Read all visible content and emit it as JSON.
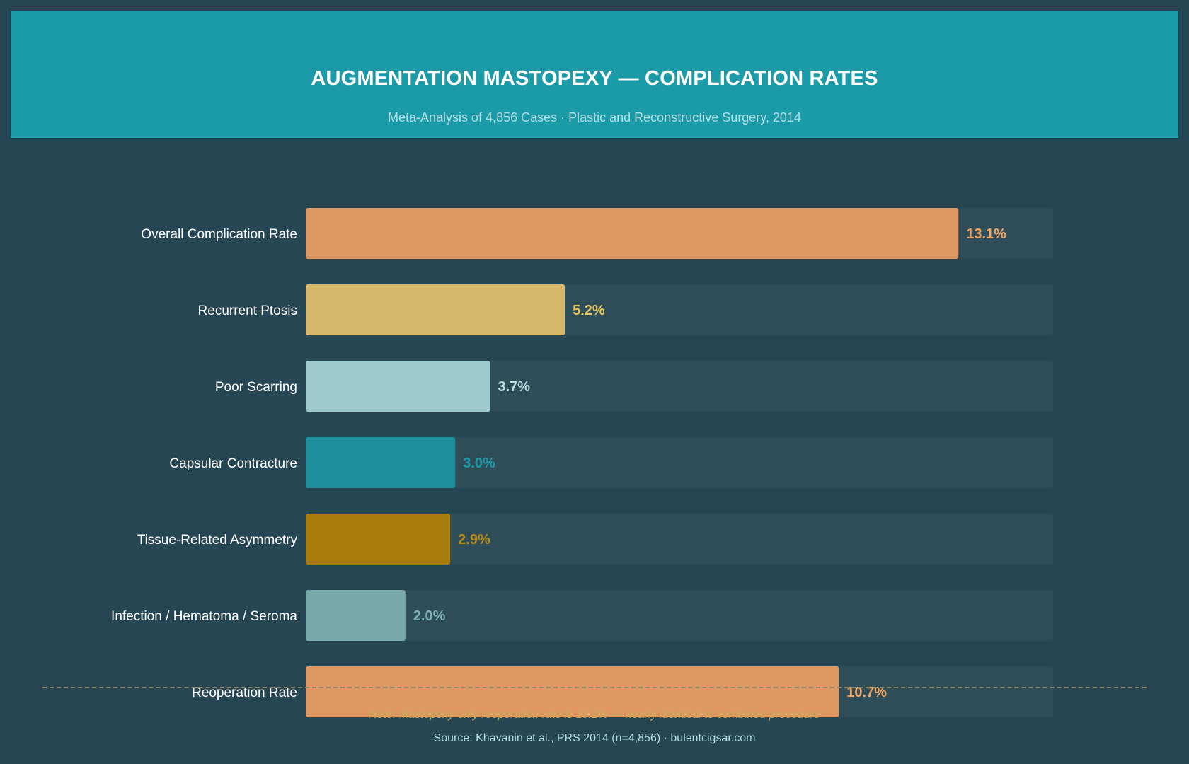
{
  "header": {
    "title": "AUGMENTATION MASTOPEXY — COMPLICATION RATES",
    "subtitle": "Meta-Analysis of 4,856 Cases · Plastic and Reconstructive Surgery, 2014"
  },
  "chart_data": {
    "type": "bar",
    "orientation": "horizontal",
    "categories": [
      "Overall Complication Rate",
      "Recurrent Ptosis",
      "Poor Scarring",
      "Capsular Contracture",
      "Tissue-Related Asymmetry",
      "Infection / Hematoma / Seroma",
      "Reoperation Rate"
    ],
    "values": [
      13.1,
      5.2,
      3.7,
      3.0,
      2.9,
      2.0,
      10.7
    ],
    "value_labels": [
      "13.1%",
      "5.2%",
      "3.7%",
      "3.0%",
      "2.9%",
      "2.0%",
      "10.7%"
    ],
    "colors": [
      "#e09862",
      "#d6b86b",
      "#9ccacd",
      "#1b8f9b",
      "#a87c0d",
      "#7aa9ac",
      "#e09862"
    ],
    "label_colors": [
      "#f2a663",
      "#e8c35c",
      "#b8dde0",
      "#1b9aa7",
      "#b88a10",
      "#7fb2b5",
      "#f2a663"
    ],
    "xlim": [
      0,
      15
    ],
    "track_color": "#2e4d58",
    "grid": false,
    "title": "",
    "xlabel": "",
    "ylabel": ""
  },
  "footer": {
    "note": "Note: Mastopexy-only reoperation rate is 10.2% — nearly identical to combined procedure",
    "source": "Source: Khavanin et al., PRS 2014 (n=4,856) · bulentcigsar.com"
  }
}
